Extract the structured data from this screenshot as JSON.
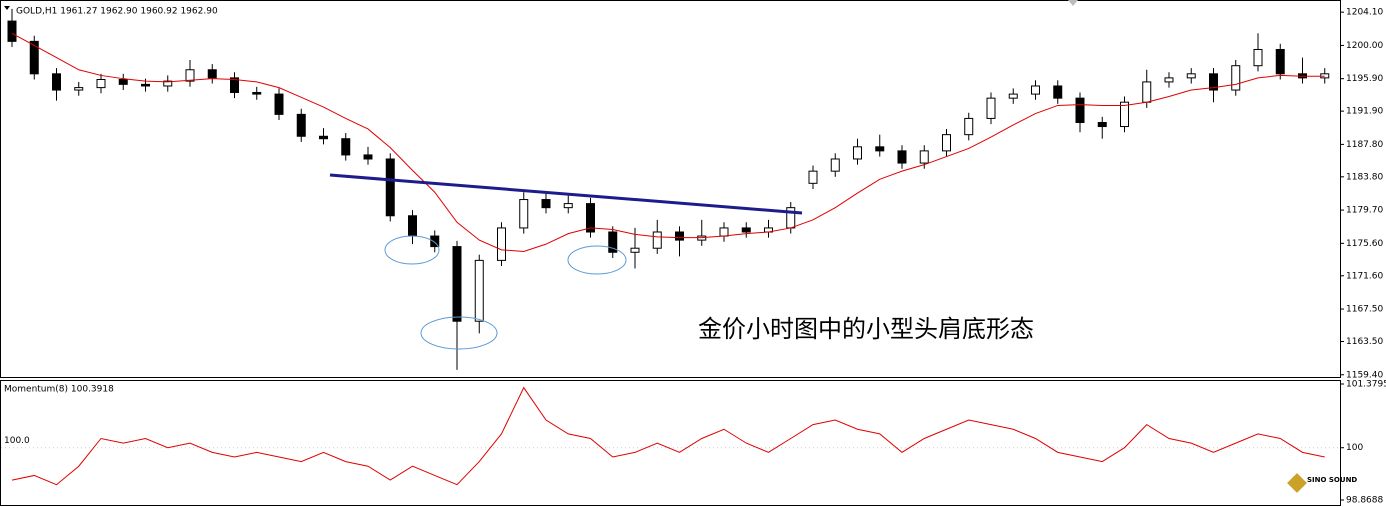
{
  "chart_data": [
    {
      "type": "candlestick",
      "title": "GOLD,H1  1961.27 1962.90 1960.92 1962.90",
      "annotation": "金价小时图中的小型头肩底形态",
      "up_color": "#ffffff",
      "down_color": "#000000",
      "ma_color": "#e00000",
      "open": [
        1203.0,
        1200.5,
        1196.5,
        1194.5,
        1194.8,
        1195.8,
        1195.2,
        1195.0,
        1195.6,
        1197.0,
        1196.0,
        1194.2,
        1194.0,
        1191.5,
        1188.8,
        1188.5,
        1186.5,
        1186.0,
        1179.0,
        1176.5,
        1175.2,
        1166.0,
        1173.5,
        1177.5,
        1181.0,
        1180.0,
        1180.5,
        1177.0,
        1174.5,
        1175.0,
        1177.0,
        1176.0,
        1176.5,
        1177.5,
        1177.0,
        1177.5,
        1183.0,
        1184.5,
        1186.0,
        1187.5,
        1187.0,
        1185.5,
        1187.0,
        1189.0,
        1191.0,
        1193.5,
        1194.0,
        1195.0,
        1193.5,
        1190.5,
        1190.0,
        1193.0,
        1195.5,
        1196.0,
        1196.5,
        1194.5,
        1197.5,
        1199.5,
        1196.5,
        1196.0
      ],
      "high": [
        1204.5,
        1201.2,
        1197.2,
        1195.5,
        1196.5,
        1196.5,
        1195.9,
        1196.3,
        1198.2,
        1197.7,
        1196.7,
        1194.9,
        1194.7,
        1192.2,
        1189.8,
        1189.2,
        1187.5,
        1186.7,
        1179.7,
        1177.2,
        1175.9,
        1174.2,
        1178.2,
        1181.9,
        1181.8,
        1181.5,
        1181.2,
        1177.7,
        1177.5,
        1178.5,
        1177.7,
        1178.5,
        1178.2,
        1178.2,
        1178.5,
        1180.7,
        1185.2,
        1186.7,
        1188.5,
        1189.0,
        1187.7,
        1187.7,
        1189.7,
        1191.7,
        1194.2,
        1194.7,
        1195.7,
        1195.7,
        1194.2,
        1191.2,
        1193.7,
        1197.0,
        1196.7,
        1197.2,
        1197.2,
        1198.2,
        1201.5,
        1200.2,
        1198.5,
        1197.2
      ],
      "low": [
        1199.8,
        1195.8,
        1193.2,
        1193.8,
        1194.1,
        1194.5,
        1194.3,
        1194.3,
        1194.9,
        1195.3,
        1193.5,
        1193.3,
        1190.8,
        1188.1,
        1187.8,
        1185.8,
        1185.3,
        1178.3,
        1175.5,
        1174.5,
        1160.0,
        1164.5,
        1172.8,
        1176.8,
        1179.3,
        1179.3,
        1176.3,
        1173.8,
        1172.5,
        1174.3,
        1174.0,
        1175.3,
        1175.8,
        1176.3,
        1176.3,
        1176.8,
        1182.3,
        1183.8,
        1185.3,
        1186.3,
        1184.8,
        1184.8,
        1186.3,
        1188.3,
        1190.3,
        1192.8,
        1193.3,
        1192.8,
        1189.3,
        1188.5,
        1189.3,
        1192.3,
        1194.8,
        1195.3,
        1193.0,
        1193.8,
        1196.8,
        1195.8,
        1195.3,
        1195.3
      ],
      "close": [
        1200.5,
        1196.5,
        1194.5,
        1194.8,
        1195.8,
        1195.2,
        1195.0,
        1195.6,
        1197.0,
        1196.0,
        1194.2,
        1194.0,
        1191.5,
        1188.8,
        1188.5,
        1186.5,
        1186.0,
        1179.0,
        1176.5,
        1175.2,
        1166.0,
        1173.5,
        1177.5,
        1181.0,
        1180.0,
        1180.5,
        1177.0,
        1174.5,
        1175.0,
        1177.0,
        1176.0,
        1176.5,
        1177.5,
        1177.0,
        1177.5,
        1180.0,
        1184.5,
        1186.0,
        1187.5,
        1187.0,
        1185.5,
        1187.0,
        1189.0,
        1191.0,
        1193.5,
        1194.0,
        1195.0,
        1193.5,
        1190.5,
        1190.0,
        1193.0,
        1195.5,
        1196.0,
        1196.5,
        1194.5,
        1197.5,
        1199.5,
        1196.5,
        1196.0,
        1196.5
      ],
      "ma": [
        1201.5,
        1200.0,
        1198.5,
        1197.0,
        1196.3,
        1195.9,
        1195.6,
        1195.5,
        1195.7,
        1195.9,
        1195.8,
        1195.5,
        1194.8,
        1193.6,
        1192.4,
        1191.0,
        1189.7,
        1187.4,
        1184.6,
        1181.9,
        1178.2,
        1176.0,
        1174.8,
        1174.6,
        1175.5,
        1176.8,
        1177.5,
        1177.3,
        1176.7,
        1176.4,
        1176.3,
        1176.3,
        1176.5,
        1176.8,
        1177.0,
        1177.5,
        1178.5,
        1180.0,
        1181.8,
        1183.5,
        1184.5,
        1185.3,
        1186.3,
        1187.3,
        1188.7,
        1190.2,
        1191.6,
        1192.6,
        1192.7,
        1192.6,
        1192.6,
        1193.0,
        1193.7,
        1194.5,
        1194.8,
        1195.2,
        1196.0,
        1196.3,
        1196.2,
        1196.2
      ],
      "ylim": [
        1159.0,
        1205.6
      ],
      "yticks": [
        {
          "value": 1204.1,
          "label": "1204.10"
        },
        {
          "value": 1200.0,
          "label": "1200.00"
        },
        {
          "value": 1195.9,
          "label": "1195.90"
        },
        {
          "value": 1191.9,
          "label": "1191.90"
        },
        {
          "value": 1187.8,
          "label": "1187.80"
        },
        {
          "value": 1183.8,
          "label": "1183.80"
        },
        {
          "value": 1179.7,
          "label": "1179.70"
        },
        {
          "value": 1175.6,
          "label": "1175.60"
        },
        {
          "value": 1171.6,
          "label": "1171.60"
        },
        {
          "value": 1167.5,
          "label": "1167.50"
        },
        {
          "value": 1163.5,
          "label": "1163.50"
        },
        {
          "value": 1159.4,
          "label": "1159.40"
        }
      ]
    },
    {
      "type": "line",
      "title": "Momentum(8) 100.3918",
      "color": "#e00000",
      "values": [
        99.3,
        99.4,
        99.2,
        99.6,
        100.2,
        100.1,
        100.2,
        100.0,
        100.1,
        99.9,
        99.8,
        99.9,
        99.8,
        99.7,
        99.9,
        99.7,
        99.6,
        99.3,
        99.6,
        99.4,
        99.2,
        99.7,
        100.3,
        101.3,
        100.6,
        100.3,
        100.2,
        99.8,
        99.9,
        100.1,
        99.9,
        100.2,
        100.4,
        100.1,
        99.9,
        100.2,
        100.5,
        100.6,
        100.4,
        100.3,
        99.9,
        100.2,
        100.4,
        100.6,
        100.5,
        100.4,
        100.2,
        99.9,
        99.8,
        99.7,
        100.0,
        100.5,
        100.2,
        100.1,
        99.9,
        100.1,
        100.3,
        100.2,
        99.9,
        99.8
      ],
      "ylim": [
        98.8688,
        101.3795
      ],
      "yticks": [
        101.3795,
        100,
        98.8688
      ],
      "level": {
        "value": 100,
        "label": "100.0"
      }
    }
  ],
  "watermark": "SINO SOUND"
}
